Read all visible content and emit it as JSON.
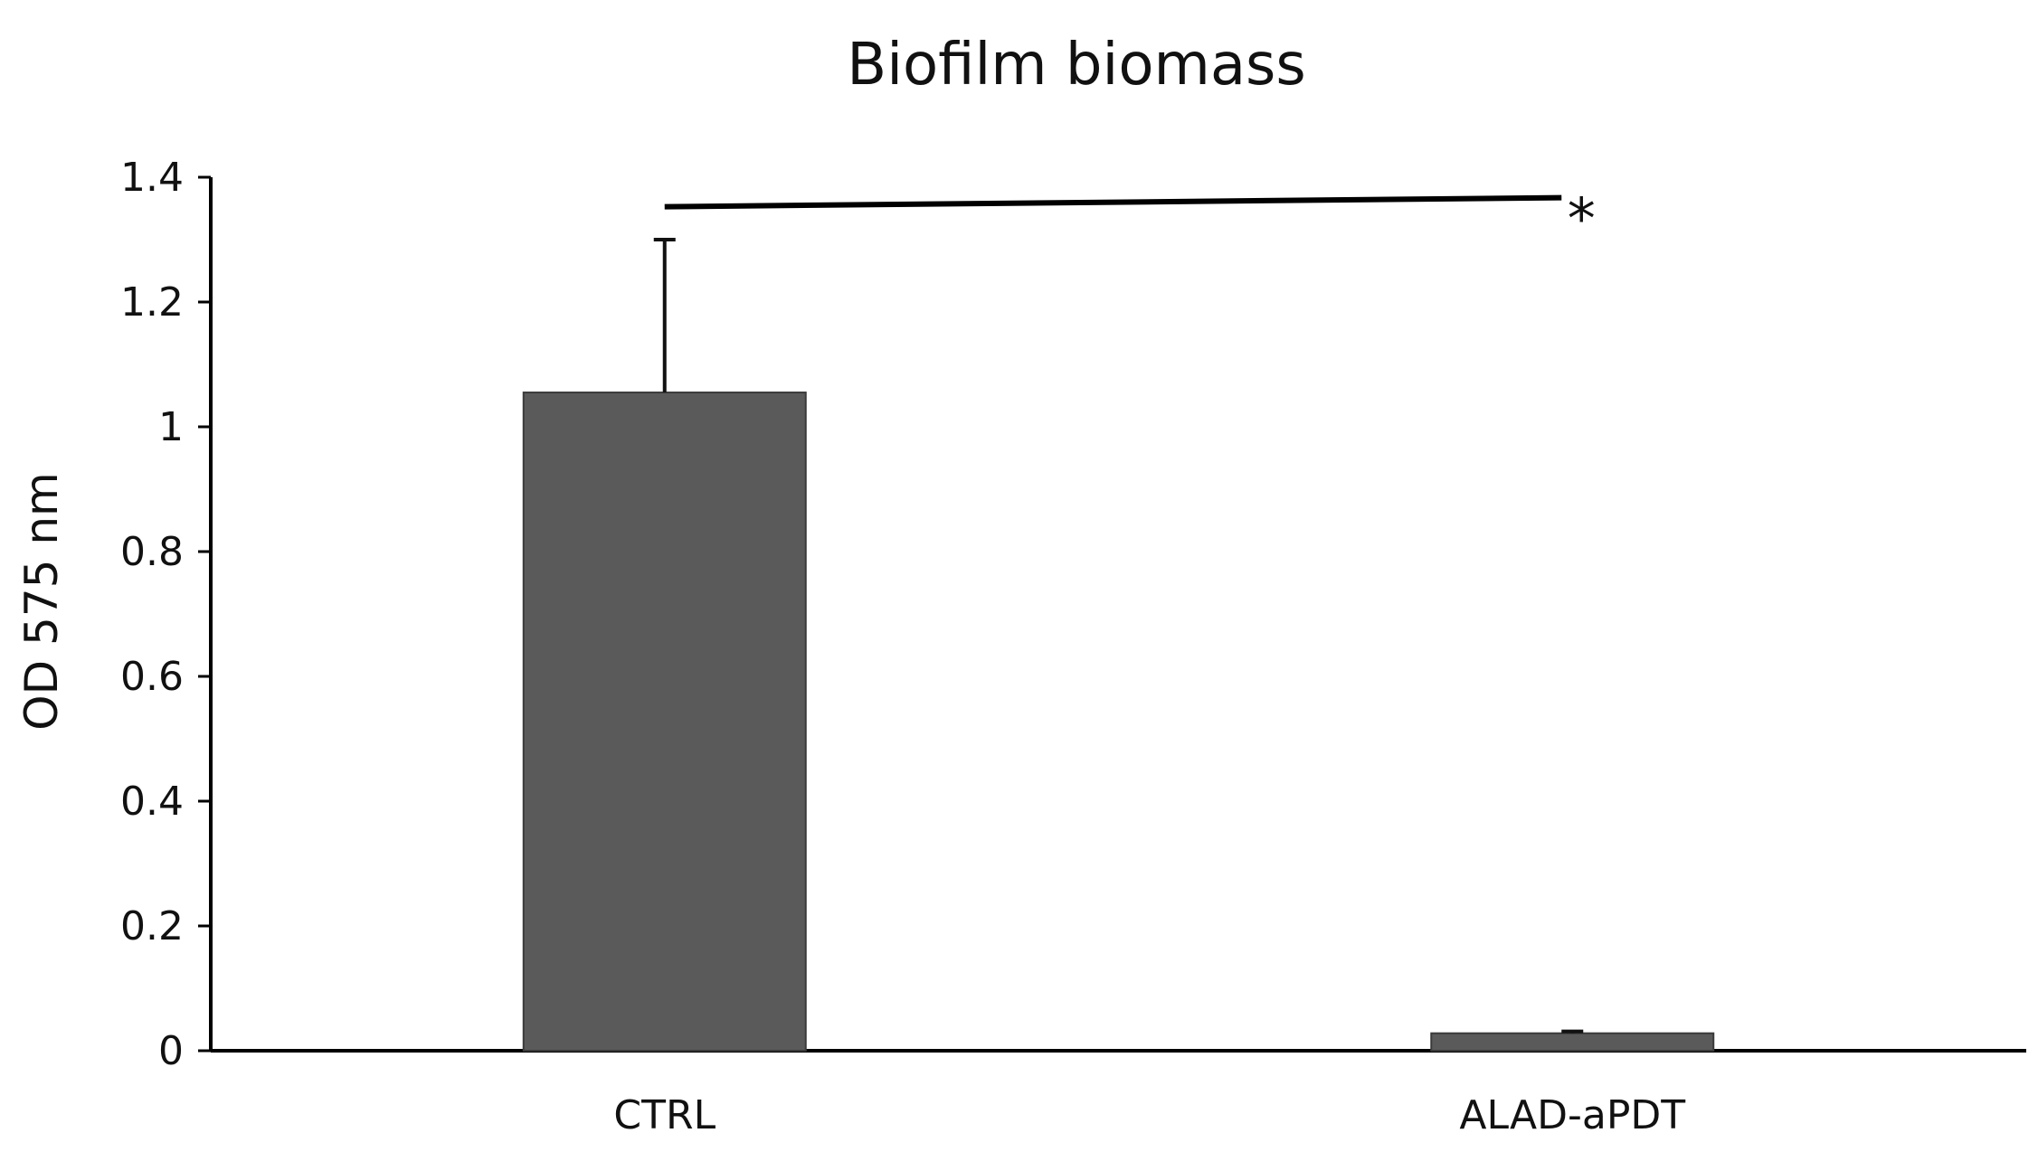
{
  "chart_data": {
    "type": "bar",
    "title": "Biofilm biomass",
    "xlabel": "",
    "ylabel": "OD 575 nm",
    "categories": [
      "CTRL",
      "ALAD-aPDT"
    ],
    "values": [
      1.055,
      0.028
    ],
    "error_bars": [
      0.245,
      0.003
    ],
    "ylim": [
      0,
      1.4
    ],
    "yticks": [
      0,
      0.2,
      0.4,
      0.6,
      0.8,
      1,
      1.2,
      1.4
    ],
    "ytick_labels": [
      "0",
      "0.2",
      "0.4",
      "0.6",
      "0.8",
      "1",
      "1.2",
      "1.4"
    ],
    "bar_color": "#5a5a5a",
    "grid": false,
    "significance": {
      "from": "CTRL",
      "to": "ALAD-aPDT",
      "value": 1.36,
      "label": "*"
    }
  }
}
